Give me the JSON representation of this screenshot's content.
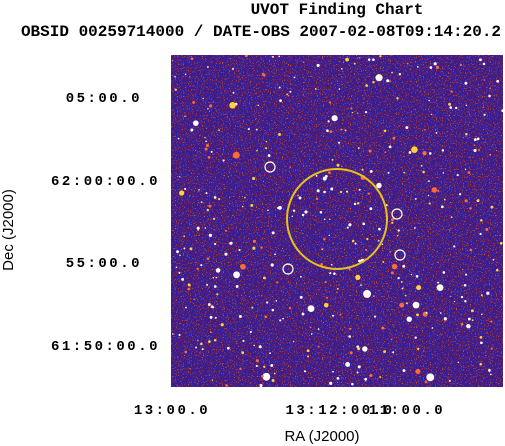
{
  "header": {
    "title": "UVOT Finding Chart",
    "subtitle": "OBSID 00259714000 / DATE-OBS 2007-02-08T09:14:20.2"
  },
  "axes": {
    "x_label": "RA (J2000)",
    "y_label": "Dec (J2000)",
    "x_ticks": [
      "13:00.0",
      "13:12:00.0",
      "11:00.0"
    ],
    "y_ticks": [
      "05:00.0",
      "62:00:00.0",
      "55:00.0",
      "61:50:00.0"
    ]
  }
}
